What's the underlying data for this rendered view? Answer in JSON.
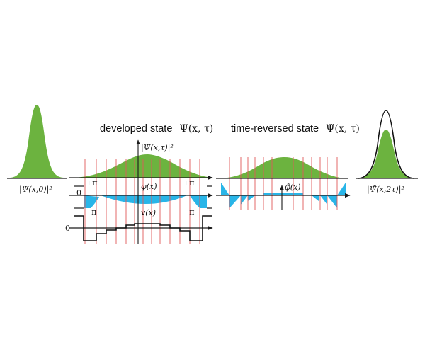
{
  "colors": {
    "green": "#6cb33f",
    "cyan": "#29b5e8",
    "red_line": "#e05a5a",
    "axis": "#1a1a1a",
    "outline": "#111111"
  },
  "labels": {
    "initial_psi": "|Ψ(x,0)|²",
    "developed_title": "developed state",
    "developed_symbol": "Ψ(x, τ)",
    "reversed_title": "time-reversed state",
    "reversed_symbol": "Ψ̃(x, τ)",
    "developed_density": "|Ψ(x,τ)|²",
    "plus_pi_left": "+π",
    "plus_pi_right": "+π",
    "phase": "φ(x)",
    "zero_phase": "0",
    "minus_pi_left": "−π",
    "minus_pi_right": "−π",
    "potential": "v(x)",
    "zero_potential": "0",
    "reversed_phase": "φ̃(x)",
    "final_psi": "|Ψ̃(x,2τ)|²"
  },
  "icons": {
    "axis_arrow": "arrowhead-icon"
  }
}
